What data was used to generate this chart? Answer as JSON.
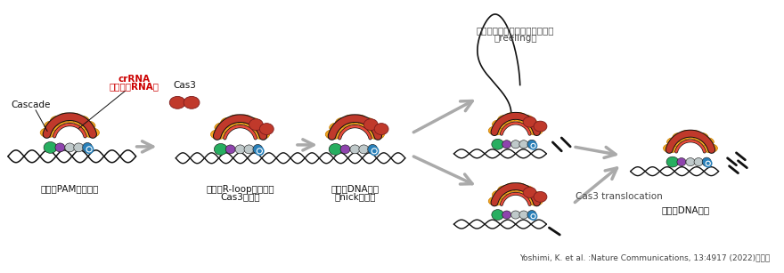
{
  "bg_color": "#ffffff",
  "colors": {
    "orange": "#F5A623",
    "dark_orange": "#C47A00",
    "red_dark": "#C0392B",
    "red_mid": "#E74C3C",
    "dark_red": "#7B1C1C",
    "green": "#27AE60",
    "dark_green": "#1A7A40",
    "purple": "#8E44AD",
    "gray": "#AAAAAA",
    "light_gray": "#BFC9CA",
    "blue": "#2980B9",
    "dark_blue": "#1A5276",
    "black": "#111111",
    "white": "#FFFFFF",
    "crRNA_red": "#CC0000",
    "arrow_gray": "#AAAAAA",
    "label_dark": "#444444"
  },
  "labels": {
    "cascade": "Cascade",
    "crRNA_line1": "crRNA",
    "crRNA_line2": "（ガイドRNA）",
    "Cas3": "Cas3",
    "step1": "標的（PAM）の探索",
    "step2_line1": "認識（R-loop）および",
    "step2_line2": "Cas3の結合",
    "step3_line1": "一本鷚DNA切断",
    "step3_line2": "（nick導入）",
    "step4_top_line1": "ヘリカーゼによる巻き取り反応",
    "step4_top_line2": "（reeling）",
    "step4_bot": "Cas3 translocation",
    "step5": "二本鷚DNA切断",
    "ref": "Yoshimi, K. et al. :Nature Communications, 13:4917 (2022)を参考"
  }
}
